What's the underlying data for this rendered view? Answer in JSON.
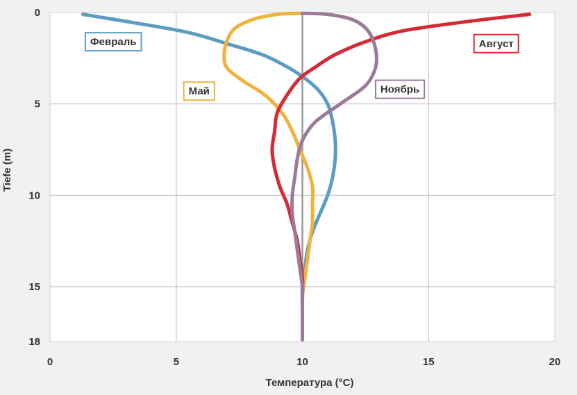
{
  "chart_data": {
    "type": "line",
    "title": "",
    "xlabel": "Температура (°C)",
    "ylabel": "Tiefe (m)",
    "xlim": [
      0,
      20
    ],
    "ylim": [
      18,
      0
    ],
    "x_ticks": [
      0,
      5,
      10,
      15,
      20
    ],
    "y_ticks": [
      0,
      5,
      10,
      15,
      18
    ],
    "grid": true,
    "series": [
      {
        "name": "Февраль",
        "color": "#5b9dc2",
        "points": [
          [
            1.3,
            0.1
          ],
          [
            3.5,
            0.6
          ],
          [
            5.5,
            1.1
          ],
          [
            7.0,
            1.7
          ],
          [
            8.4,
            2.3
          ],
          [
            9.3,
            2.9
          ],
          [
            10.0,
            3.5
          ],
          [
            10.6,
            4.2
          ],
          [
            11.0,
            5.0
          ],
          [
            11.2,
            6.0
          ],
          [
            11.3,
            7.0
          ],
          [
            11.3,
            8.0
          ],
          [
            11.2,
            9.0
          ],
          [
            11.0,
            10.0
          ],
          [
            10.7,
            11.0
          ],
          [
            10.4,
            12.0
          ],
          [
            10.2,
            13.0
          ],
          [
            10.1,
            14.0
          ],
          [
            10.0,
            15.0
          ],
          [
            10.0,
            16.0
          ],
          [
            10.0,
            17.0
          ],
          [
            10.0,
            17.9
          ]
        ]
      },
      {
        "name": "Май",
        "color": "#efb23e",
        "points": [
          [
            10.0,
            0.05
          ],
          [
            9.0,
            0.1
          ],
          [
            8.0,
            0.4
          ],
          [
            7.3,
            0.9
          ],
          [
            7.0,
            1.6
          ],
          [
            6.9,
            2.3
          ],
          [
            7.0,
            3.0
          ],
          [
            7.6,
            3.7
          ],
          [
            8.5,
            4.5
          ],
          [
            9.2,
            5.5
          ],
          [
            9.6,
            6.5
          ],
          [
            9.9,
            7.5
          ],
          [
            10.2,
            8.5
          ],
          [
            10.4,
            9.5
          ],
          [
            10.4,
            10.5
          ],
          [
            10.4,
            11.5
          ],
          [
            10.3,
            12.5
          ],
          [
            10.2,
            13.5
          ],
          [
            10.1,
            14.5
          ],
          [
            10.0,
            15.5
          ],
          [
            10.0,
            16.5
          ],
          [
            10.0,
            17.5
          ]
        ]
      },
      {
        "name": "Август",
        "color": "#d42a36",
        "points": [
          [
            19.0,
            0.1
          ],
          [
            16.5,
            0.5
          ],
          [
            14.0,
            1.0
          ],
          [
            12.5,
            1.6
          ],
          [
            11.3,
            2.3
          ],
          [
            10.5,
            3.0
          ],
          [
            9.9,
            3.6
          ],
          [
            9.4,
            4.5
          ],
          [
            9.0,
            5.5
          ],
          [
            8.9,
            6.5
          ],
          [
            8.8,
            7.5
          ],
          [
            8.9,
            8.5
          ],
          [
            9.1,
            9.5
          ],
          [
            9.4,
            10.5
          ],
          [
            9.6,
            11.5
          ],
          [
            9.8,
            12.5
          ],
          [
            9.9,
            13.5
          ],
          [
            10.0,
            14.5
          ],
          [
            10.0,
            15.5
          ],
          [
            10.0,
            16.5
          ],
          [
            10.0,
            17.5
          ]
        ]
      },
      {
        "name": "Ноябрь",
        "color": "#9b7b9a",
        "points": [
          [
            10.0,
            0.05
          ],
          [
            11.0,
            0.1
          ],
          [
            12.0,
            0.4
          ],
          [
            12.6,
            1.0
          ],
          [
            12.9,
            2.0
          ],
          [
            12.9,
            3.0
          ],
          [
            12.5,
            4.0
          ],
          [
            11.5,
            5.0
          ],
          [
            10.5,
            6.0
          ],
          [
            10.0,
            7.0
          ],
          [
            9.8,
            8.0
          ],
          [
            9.7,
            9.0
          ],
          [
            9.6,
            10.0
          ],
          [
            9.6,
            11.0
          ],
          [
            9.7,
            12.0
          ],
          [
            9.8,
            13.0
          ],
          [
            9.9,
            14.0
          ],
          [
            10.0,
            15.0
          ],
          [
            10.0,
            16.0
          ],
          [
            10.0,
            17.0
          ],
          [
            10.0,
            17.9
          ]
        ]
      }
    ],
    "legend": [
      {
        "label": "Февраль",
        "color": "#5b9dc2",
        "anchor": [
          1.4,
          1.6
        ]
      },
      {
        "label": "Май",
        "color": "#efb23e",
        "anchor": [
          5.3,
          4.3
        ]
      },
      {
        "label": "Август",
        "color": "#d42a36",
        "anchor": [
          16.8,
          1.7
        ]
      },
      {
        "label": "Ноябрь",
        "color": "#9b7b9a",
        "anchor": [
          12.9,
          4.2
        ]
      }
    ],
    "center_line": {
      "x": 10,
      "color": "#9a9a9a"
    }
  }
}
